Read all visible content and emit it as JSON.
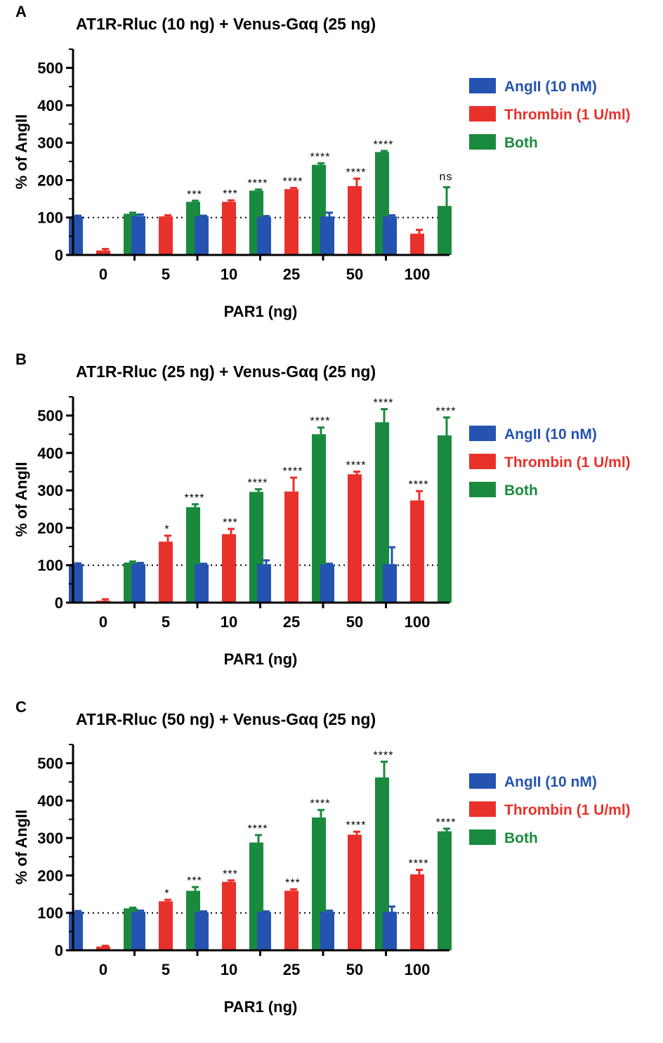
{
  "chart_data": [
    {
      "type": "bar",
      "panel": "A",
      "title": "AT1R-Rluc (10 ng) + Venus-Gαq (25 ng)",
      "xlabel": "PAR1 (ng)",
      "ylabel": "% of AngII",
      "ylim": [
        0,
        550
      ],
      "yticks": [
        0,
        100,
        200,
        300,
        400,
        500
      ],
      "reference_line": 100,
      "categories": [
        "0",
        "5",
        "10",
        "25",
        "50",
        "100"
      ],
      "series": [
        {
          "name": "AngII (10 nM)",
          "color": "#2453b0",
          "legend_text_color": "#2453b0",
          "values": [
            103,
            104,
            103,
            102,
            103,
            103
          ],
          "errors": [
            2,
            4,
            2,
            2,
            10,
            3
          ],
          "labels": [
            "",
            "",
            "",
            "",
            "",
            ""
          ]
        },
        {
          "name": "Thrombin (1 U/ml)",
          "color": "#e8312b",
          "legend_text_color": "#e8312b",
          "values": [
            12,
            103,
            142,
            176,
            184,
            57
          ],
          "errors": [
            4,
            3,
            4,
            3,
            20,
            10
          ],
          "labels": [
            "",
            "",
            "***",
            "****",
            "****",
            ""
          ]
        },
        {
          "name": "Both",
          "color": "#1a8a3e",
          "legend_text_color": "#1a8a3e",
          "values": [
            110,
            142,
            172,
            241,
            275,
            131
          ],
          "errors": [
            3,
            3,
            3,
            4,
            3,
            50
          ],
          "labels": [
            "",
            "***",
            "****",
            "****",
            "****",
            "ns"
          ]
        }
      ]
    },
    {
      "type": "bar",
      "panel": "B",
      "title": "AT1R-Rluc (25 ng) + Venus-Gαq (25 ng)",
      "xlabel": "PAR1 (ng)",
      "ylabel": "% of AngII",
      "ylim": [
        0,
        550
      ],
      "yticks": [
        0,
        100,
        200,
        300,
        400,
        500
      ],
      "reference_line": 100,
      "categories": [
        "0",
        "5",
        "10",
        "25",
        "50",
        "100"
      ],
      "series": [
        {
          "name": "AngII (10 nM)",
          "color": "#2453b0",
          "legend_text_color": "#2453b0",
          "values": [
            103,
            103,
            102,
            103,
            102,
            103
          ],
          "errors": [
            2,
            3,
            2,
            10,
            2,
            45
          ],
          "labels": [
            "",
            "",
            "",
            "",
            "",
            ""
          ]
        },
        {
          "name": "Thrombin (1 U/ml)",
          "color": "#e8312b",
          "legend_text_color": "#e8312b",
          "values": [
            5,
            163,
            183,
            297,
            343,
            273
          ],
          "errors": [
            4,
            16,
            14,
            37,
            7,
            25
          ],
          "labels": [
            "",
            "*",
            "***",
            "****",
            "****",
            "****"
          ]
        },
        {
          "name": "Both",
          "color": "#1a8a3e",
          "legend_text_color": "#1a8a3e",
          "values": [
            107,
            255,
            296,
            450,
            482,
            447
          ],
          "errors": [
            3,
            8,
            7,
            18,
            35,
            48
          ],
          "labels": [
            "",
            "****",
            "****",
            "****",
            "****",
            "****"
          ]
        }
      ]
    },
    {
      "type": "bar",
      "panel": "C",
      "title": "AT1R-Rluc (50 ng) + Venus-Gαq (25 ng)",
      "xlabel": "PAR1 (ng)",
      "ylabel": "% of AngII",
      "ylim": [
        0,
        550
      ],
      "yticks": [
        0,
        100,
        200,
        300,
        400,
        500
      ],
      "reference_line": 100,
      "categories": [
        "0",
        "5",
        "10",
        "25",
        "50",
        "100"
      ],
      "series": [
        {
          "name": "AngII (10 nM)",
          "color": "#2453b0",
          "legend_text_color": "#2453b0",
          "values": [
            103,
            103,
            102,
            102,
            103,
            103
          ],
          "errors": [
            2,
            3,
            2,
            2,
            3,
            14
          ],
          "labels": [
            "",
            "",
            "",
            "",
            "",
            ""
          ]
        },
        {
          "name": "Thrombin (1 U/ml)",
          "color": "#e8312b",
          "legend_text_color": "#e8312b",
          "values": [
            10,
            131,
            183,
            159,
            309,
            203
          ],
          "errors": [
            2,
            4,
            4,
            4,
            8,
            12
          ],
          "labels": [
            "",
            "*",
            "***",
            "***",
            "****",
            "****"
          ]
        },
        {
          "name": "Both",
          "color": "#1a8a3e",
          "legend_text_color": "#1a8a3e",
          "values": [
            112,
            159,
            288,
            355,
            462,
            318
          ],
          "errors": [
            2,
            10,
            20,
            20,
            42,
            7
          ],
          "labels": [
            "",
            "***",
            "****",
            "****",
            "****",
            "****"
          ]
        }
      ]
    }
  ]
}
